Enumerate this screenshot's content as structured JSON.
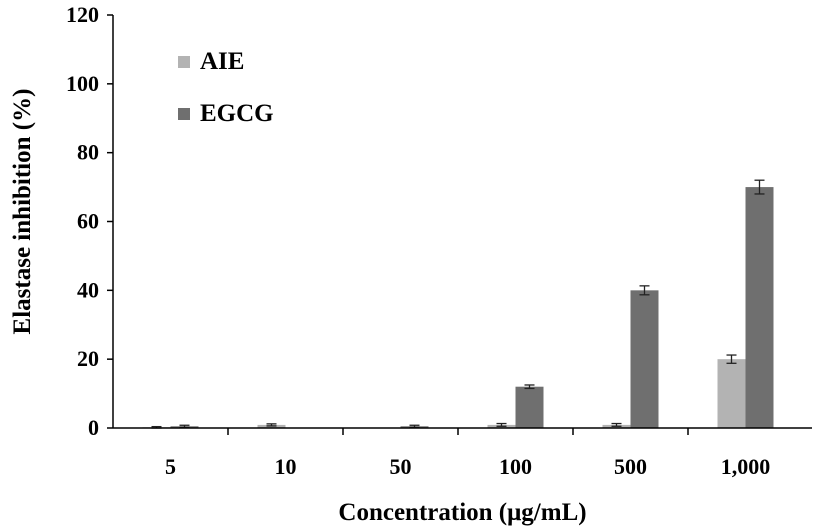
{
  "chart_data": {
    "type": "bar",
    "xlabel": "Concentration (μg/mL)",
    "ylabel": "Elastase inhibition (%)",
    "ylim": [
      0,
      120
    ],
    "yticks": [
      "0",
      "20",
      "40",
      "60",
      "80",
      "100",
      "120"
    ],
    "categories": [
      "5",
      "10",
      "50",
      "100",
      "500",
      "1,000"
    ],
    "series": [
      {
        "name": "AIE",
        "color": "#b3b3b3",
        "values": [
          0.2,
          0.9,
          0,
          0.9,
          0.9,
          20
        ],
        "errors": [
          0.2,
          0.3,
          0,
          0.4,
          0.4,
          1.2
        ]
      },
      {
        "name": "EGCG",
        "color": "#6f6f6f",
        "values": [
          0.5,
          0,
          0.5,
          12,
          40,
          70
        ],
        "errors": [
          0.3,
          0,
          0.3,
          0.5,
          1.3,
          2.0
        ]
      }
    ],
    "legend_position": "top-left",
    "grid": false
  }
}
